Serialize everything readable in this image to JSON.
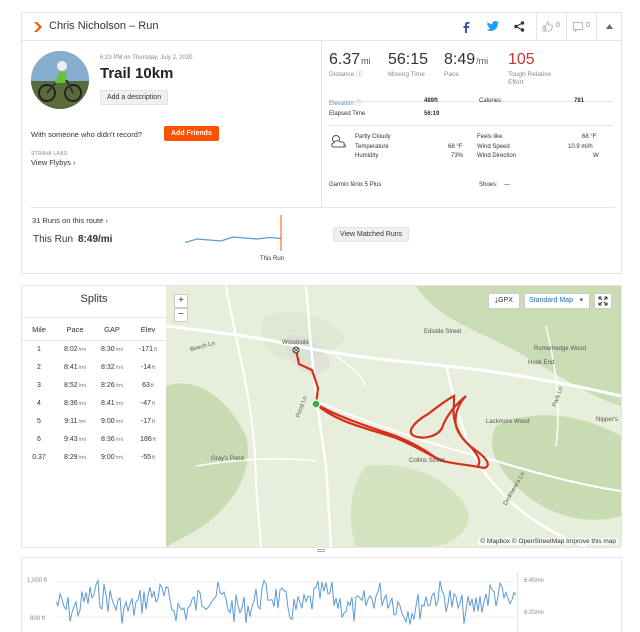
{
  "header": {
    "title": "Chris Nicholson – Run",
    "kudos_count": "0",
    "comment_count": "0"
  },
  "activity": {
    "datetime": "6:23 PM on Thursday, July 2, 2020",
    "name": "Trail 10km",
    "add_description": "Add a description",
    "with_someone": "With someone who didn't record?",
    "add_friends": "Add Friends",
    "strava_labs": "STRAVA LABS",
    "view_flybys": "View Flybys ›"
  },
  "stats": {
    "distance_value": "6.37",
    "distance_unit": "mi",
    "distance_label": "Distance",
    "moving_time_value": "56:15",
    "moving_time_label": "Moving Time",
    "pace_value": "8:49",
    "pace_unit": "/mi",
    "pace_label": "Pace",
    "effort_value": "105",
    "effort_label": "Tough Relative Effort",
    "elevation_label": "Elevation",
    "elevation_value": "489ft",
    "calories_label": "Calories",
    "calories_value": "781",
    "elapsed_label": "Elapsed Time",
    "elapsed_value": "56:19"
  },
  "weather": {
    "condition": "Partly Cloudy",
    "temperature_label": "Temperature",
    "temperature_value": "68 °F",
    "humidity_label": "Humidity",
    "humidity_value": "73%",
    "feels_like_label": "Feels like",
    "feels_like_value": "68 °F",
    "wind_speed_label": "Wind Speed",
    "wind_speed_value": "10.9 mi/h",
    "wind_dir_label": "Wind Direction",
    "wind_dir_value": "W"
  },
  "device": {
    "name": "Garmin fēnix 5 Plus",
    "shoes_label": "Shoes:",
    "shoes_value": "—"
  },
  "matched": {
    "runs_on_route": "31 Runs on this route ›",
    "this_run_label": "This Run",
    "this_run_pace": "8:49/mi",
    "this_run_marker": "This Run",
    "view_matched": "View Matched Runs",
    "trend_values": [
      0.45,
      0.52,
      0.5,
      0.48,
      0.56,
      0.54,
      0.52,
      0.55,
      0.53
    ]
  },
  "splits": {
    "title": "Splits",
    "headers": [
      "Mile",
      "Pace",
      "GAP",
      "Elev"
    ],
    "rows": [
      {
        "mile": "1",
        "pace": "8:02",
        "gap": "8:30",
        "elev": "-171"
      },
      {
        "mile": "2",
        "pace": "8:41",
        "gap": "8:32",
        "elev": "-14"
      },
      {
        "mile": "3",
        "pace": "8:52",
        "gap": "8:26",
        "elev": "63"
      },
      {
        "mile": "4",
        "pace": "8:36",
        "gap": "8:41",
        "elev": "-47"
      },
      {
        "mile": "5",
        "pace": "9:11",
        "gap": "9:00",
        "elev": "-17"
      },
      {
        "mile": "6",
        "pace": "9:43",
        "gap": "8:36",
        "elev": "186"
      },
      {
        "mile": "0.37",
        "pace": "8:29",
        "gap": "9:00",
        "elev": "-55"
      }
    ],
    "pace_unit": "/mi",
    "elev_unit": "ft"
  },
  "map": {
    "zoom_in": "+",
    "zoom_out": "−",
    "gpx": "GPX",
    "map_style": "Standard Map",
    "places": [
      "Woodcote",
      "Ediside Street",
      "Rumerhedge Wood",
      "Hook End",
      "Lackmore Wood",
      "Nipper's",
      "Gray's Pond",
      "Collins Street",
      "Beech Ln",
      "Pond Ln",
      "Dedmere's Ln",
      "Park Ln"
    ],
    "attribution": "© Mapbox © OpenStreetMap Improve this map"
  },
  "elevation_chart": {
    "y_left": [
      "1,000 ft",
      "800 ft"
    ],
    "y_right": [
      "6:40/mi",
      "8:20/mi"
    ]
  }
}
